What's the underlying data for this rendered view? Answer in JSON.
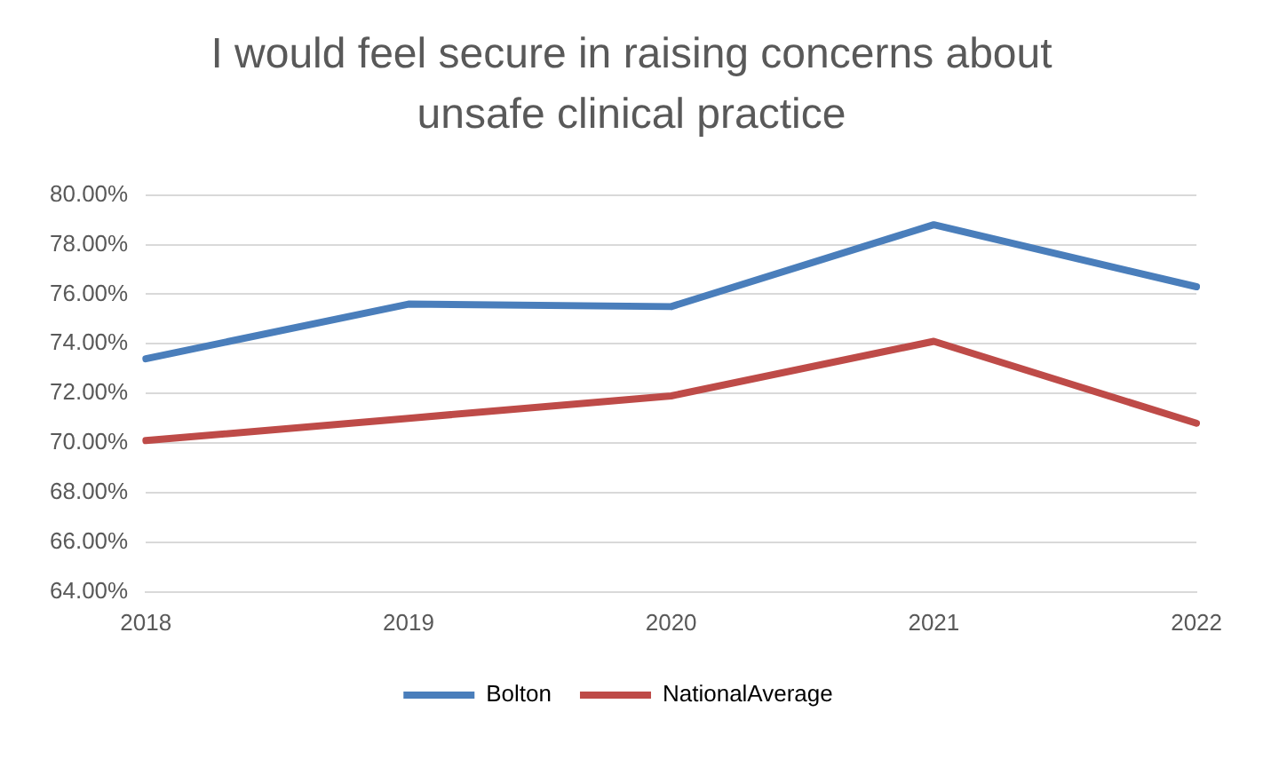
{
  "chart_data": {
    "type": "line",
    "title": "I would feel secure in raising concerns about unsafe clinical practice",
    "categories": [
      "2018",
      "2019",
      "2020",
      "2021",
      "2022"
    ],
    "series": [
      {
        "name": "Bolton",
        "color": "#4a7ebb",
        "values": [
          73.4,
          75.6,
          75.5,
          78.8,
          76.3
        ]
      },
      {
        "name": "NationalAverage",
        "color": "#be4b48",
        "values": [
          70.1,
          71.0,
          71.9,
          74.1,
          70.8
        ]
      }
    ],
    "ylim": [
      64,
      80
    ],
    "yticks": [
      {
        "value": 64,
        "label": "64.00%"
      },
      {
        "value": 66,
        "label": "66.00%"
      },
      {
        "value": 68,
        "label": "68.00%"
      },
      {
        "value": 70,
        "label": "70.00%"
      },
      {
        "value": 72,
        "label": "72.00%"
      },
      {
        "value": 74,
        "label": "74.00%"
      },
      {
        "value": 76,
        "label": "76.00%"
      },
      {
        "value": 78,
        "label": "78.00%"
      },
      {
        "value": 80,
        "label": "80.00%"
      }
    ],
    "grid": "y",
    "legend": "bottom",
    "marker": "none",
    "line_style": "solid"
  }
}
